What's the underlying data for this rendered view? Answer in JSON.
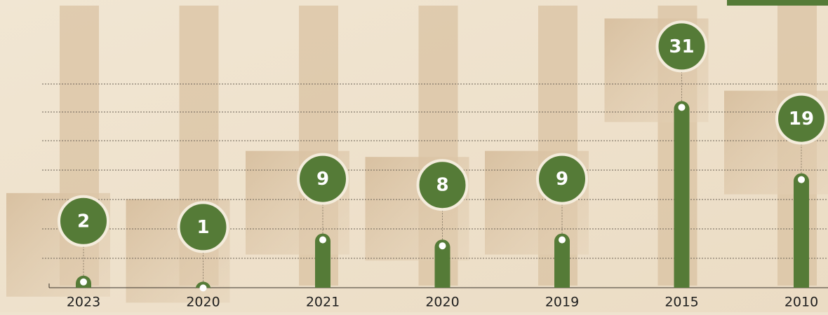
{
  "chart_data": {
    "type": "bar",
    "categories": [
      "2023",
      "2020",
      "2021",
      "2020",
      "2019",
      "2015",
      "2010"
    ],
    "values": [
      2,
      1,
      9,
      8,
      9,
      31,
      19
    ],
    "color": "#557b37",
    "ylim": [
      0,
      35
    ]
  }
}
